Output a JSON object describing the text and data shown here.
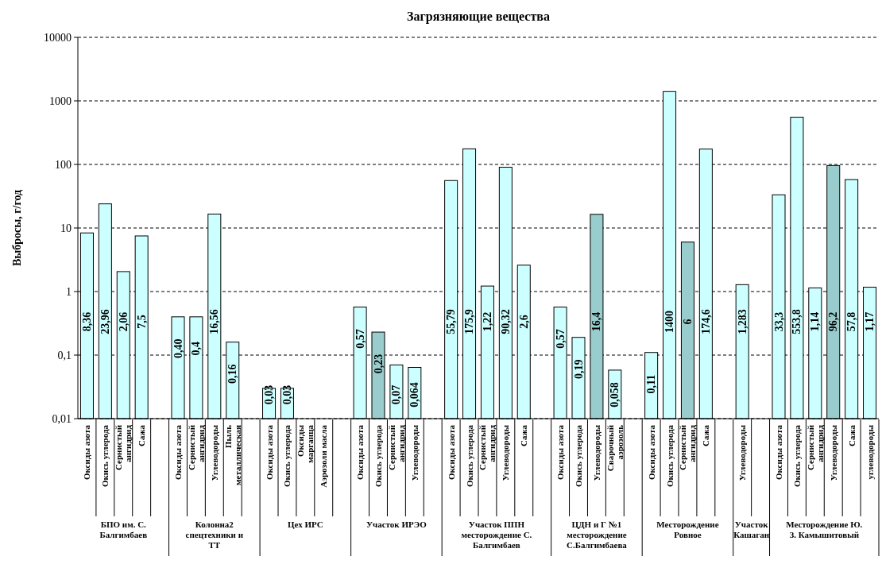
{
  "chart_data": {
    "type": "bar",
    "title": "Загрязняющие вещества",
    "ylabel": "Выбросы, г/год",
    "log": true,
    "grid": "y",
    "line_style": "dashed",
    "ylim": [
      0.01,
      10000
    ],
    "yticks": [
      {
        "value": 0.01,
        "label": "0,01"
      },
      {
        "value": 0.1,
        "label": "0,1"
      },
      1,
      10,
      100,
      1000,
      10000
    ],
    "categories": [
      "Оксиды азота",
      "Окись углерода",
      "Сернистый ангидрид",
      "Сажа",
      null,
      "Оксиды азота",
      "Сернистый ангидрид",
      "Углеводороды",
      "Пыль металлическая",
      null,
      "Оксиды азота",
      "Окись углерода",
      "Оксиды марганца",
      "Аэрозоли масла",
      null,
      "Оксиды азота",
      "Окись углерода",
      "Сернистый ангидрид",
      "Углеводороды",
      null,
      "Оксиды азота",
      "Окись углерода",
      "Сернистый ангидрид",
      "Углеводороды",
      "Сажа",
      null,
      "Оксиды азота",
      "Окись углерода",
      "Углеводороды",
      "Сварочный аэрозоль",
      null,
      "Оксиды азота",
      "Окись углерода",
      "Сернистый ангидрид",
      "Сажа",
      null,
      "Углеводороды",
      null,
      "Оксиды азота",
      "Окись углерода",
      "Сернистый ангидрид",
      "Углеводороды",
      "Сажа",
      "углеводороды"
    ],
    "values": [
      8.36,
      23.96,
      2.06,
      7.5,
      null,
      0.4,
      0.4,
      16.56,
      0.16,
      null,
      0.03,
      0.03,
      null,
      null,
      null,
      0.57,
      0.23,
      0.07,
      0.064,
      null,
      55.79,
      175.9,
      1.22,
      90.32,
      2.6,
      null,
      0.57,
      0.19,
      16.4,
      0.058,
      null,
      0.11,
      1400,
      6,
      174.6,
      null,
      1.283,
      null,
      33.3,
      553.8,
      1.14,
      96.2,
      57.8,
      1.17
    ],
    "value_labels": [
      "8,36",
      "23,96",
      "2,06",
      "7,5",
      null,
      "0,40",
      "0,4",
      "16,56",
      "0,16",
      null,
      "0,03",
      "0,03",
      null,
      null,
      null,
      "0,57",
      "0,23",
      "0,07",
      "0,064",
      null,
      "55,79",
      "175,9",
      "1,22",
      "90,32",
      "2,6",
      null,
      "0,57",
      "0,19",
      "16,4",
      "0,058",
      null,
      "0,11",
      "1400",
      "6",
      "174,6",
      null,
      "1,283",
      null,
      "33,3",
      "553,8",
      "1,14",
      "96,2",
      "57,8",
      "1,17"
    ],
    "colors": [
      "#ccffff",
      "#ccffff",
      "#ccffff",
      "#ccffff",
      null,
      "#ccffff",
      "#ccffff",
      "#ccffff",
      "#ccffff",
      null,
      "#ccffff",
      "#ccffff",
      null,
      null,
      null,
      "#ccffff",
      "#99cccc",
      "#ccffff",
      "#ccffff",
      null,
      "#ccffff",
      "#ccffff",
      "#ccffff",
      "#ccffff",
      "#ccffff",
      null,
      "#ccffff",
      "#ccffff",
      "#99cccc",
      "#ccffff",
      null,
      "#ccffff",
      "#ccffff",
      "#99cccc",
      "#ccffff",
      null,
      "#ccffff",
      null,
      "#ccffff",
      "#ccffff",
      "#ccffff",
      "#99cccc",
      "#ccffff",
      "#ccffff"
    ],
    "annotations": [
      "БПО им. С. Балгимбаев",
      "Колонна2 спецтехники и ТТ",
      "Цех ИРС",
      "Участок ИРЭО",
      "Участок ППН месторождение С. Балгимбаев",
      "ЦДН и Г №1 месторождение С.Балгимбаева",
      "Месторождение Ровное",
      "Участок Кашаган",
      "Месторождение Ю. З. Камышитовый"
    ]
  }
}
